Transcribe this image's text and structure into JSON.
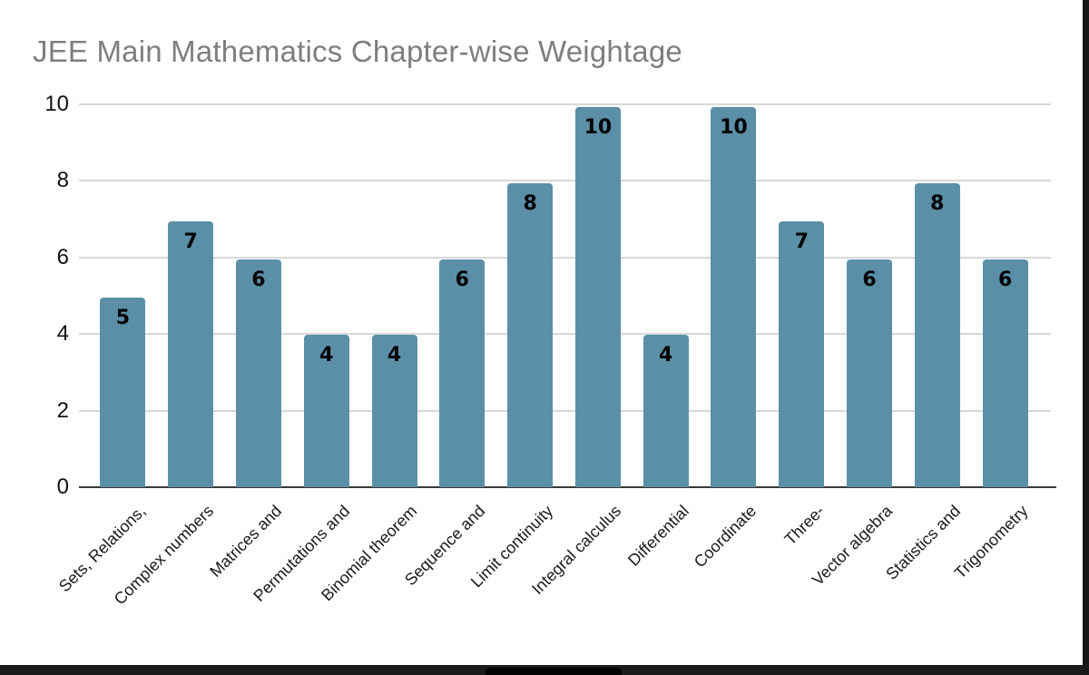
{
  "page": {
    "background": "#ffffff"
  },
  "chart_data": {
    "type": "bar",
    "title": "JEE Main Mathematics Chapter-wise Weightage",
    "categories": [
      "Sets, Relations,",
      "Complex numbers",
      "Matrices and",
      "Permutations and",
      "Binomial theorem",
      "Sequence and",
      "Limit continuity",
      "Integral calculus",
      "Differential",
      "Coordinate",
      "Three-",
      "Vector algebra",
      "Statistics and",
      "Trigonometry"
    ],
    "values": [
      5,
      7,
      6,
      4,
      4,
      6,
      8,
      10,
      4,
      10,
      7,
      6,
      8,
      6
    ],
    "xlabel": "",
    "ylabel": "",
    "ylim": [
      0,
      10
    ],
    "yticks": [
      0,
      2,
      4,
      6,
      8,
      10
    ],
    "grid": true,
    "legend": false,
    "data_labels": true,
    "x_tick_rotation_deg": 45,
    "bar_color": "#5b8fa8",
    "gridline_color": "#d8d8d8",
    "axis_color": "#3a3a3a",
    "title_color": "#7e7e7e",
    "tick_label_color": "#111111",
    "x_label_color": "#1a1a1a",
    "data_label_color": "#000000"
  },
  "frame": {
    "right_bar_color": "#161616",
    "bottom_bar_color": "#1a1a1a",
    "notch_color": "#030303"
  }
}
